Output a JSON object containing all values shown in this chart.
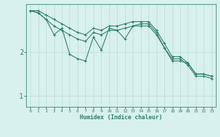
{
  "xlabel": "Humidex (Indice chaleur)",
  "x_values": [
    0,
    1,
    2,
    3,
    4,
    5,
    6,
    7,
    8,
    9,
    10,
    11,
    12,
    13,
    14,
    15,
    16,
    17,
    18,
    19,
    20,
    21,
    22,
    23
  ],
  "line1": [
    2.95,
    2.95,
    2.85,
    2.75,
    2.65,
    2.55,
    2.45,
    2.4,
    2.55,
    2.5,
    2.6,
    2.6,
    2.65,
    2.7,
    2.7,
    2.7,
    2.5,
    2.2,
    1.9,
    1.9,
    1.75,
    1.5,
    1.5,
    1.45
  ],
  "line2": [
    2.95,
    2.9,
    2.75,
    2.4,
    2.55,
    1.95,
    1.85,
    1.8,
    2.35,
    2.05,
    2.55,
    2.5,
    2.3,
    2.6,
    2.65,
    2.65,
    2.45,
    2.1,
    1.8,
    1.8,
    1.75,
    1.5,
    1.5,
    1.45
  ],
  "line3": [
    2.95,
    2.9,
    2.75,
    2.6,
    2.5,
    2.4,
    2.3,
    2.25,
    2.45,
    2.4,
    2.5,
    2.5,
    2.55,
    2.6,
    2.6,
    2.6,
    2.4,
    2.1,
    1.85,
    1.85,
    1.7,
    1.45,
    1.45,
    1.4
  ],
  "line_color": "#2e7d6e",
  "bg_color": "#d8f0ee",
  "grid_color": "#b8dbd8",
  "axis_color": "#5a9a8a",
  "tick_color": "#2e7d6e",
  "yticks": [
    1,
    2
  ],
  "ylim": [
    0.75,
    3.1
  ],
  "xlim": [
    -0.5,
    23.5
  ]
}
